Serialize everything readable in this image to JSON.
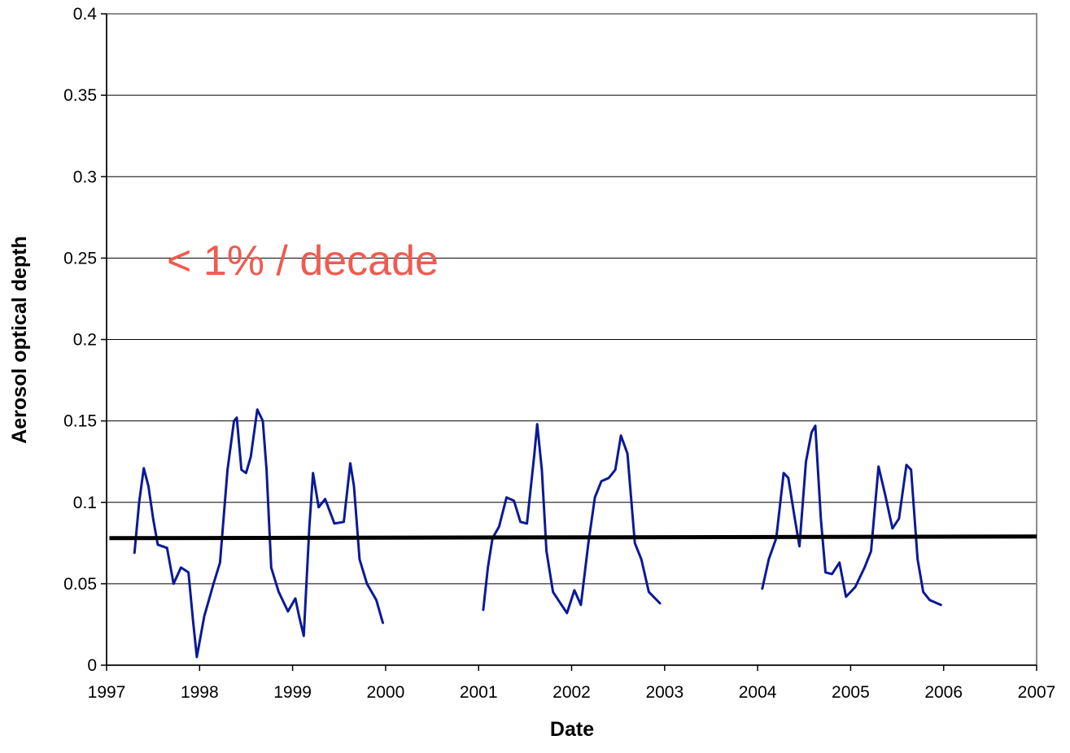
{
  "chart_data": {
    "type": "line",
    "title": "",
    "xlabel": "Date",
    "ylabel": "Aerosol optical depth",
    "xlim": [
      1997,
      2007
    ],
    "ylim": [
      0,
      0.4
    ],
    "x_ticks": [
      1997,
      1998,
      1999,
      2000,
      2001,
      2002,
      2003,
      2004,
      2005,
      2006,
      2007
    ],
    "x_tick_labels": [
      "1997",
      "1998",
      "1999",
      "2000",
      "2001",
      "2002",
      "2003",
      "2004",
      "2005",
      "2006",
      "2007"
    ],
    "y_ticks": [
      0,
      0.05,
      0.1,
      0.15,
      0.2,
      0.25,
      0.3,
      0.35,
      0.4
    ],
    "y_tick_labels": [
      "0",
      "0.05",
      "0.1",
      "0.15",
      "0.2",
      "0.25",
      "0.3",
      "0.35",
      "0.4"
    ],
    "grid": "horizontal",
    "legend": "none",
    "annotation": {
      "text": "< 1% / decade",
      "color": "#f05a50"
    },
    "series": [
      {
        "kind": "observed",
        "color": "#0a1a96",
        "segments": [
          [
            [
              1997.3,
              0.069
            ],
            [
              1997.35,
              0.1
            ],
            [
              1997.4,
              0.121
            ],
            [
              1997.45,
              0.11
            ],
            [
              1997.5,
              0.09
            ],
            [
              1997.55,
              0.074
            ],
            [
              1997.65,
              0.072
            ],
            [
              1997.72,
              0.05
            ],
            [
              1997.8,
              0.06
            ],
            [
              1997.88,
              0.057
            ],
            [
              1997.93,
              0.027
            ],
            [
              1997.97,
              0.005
            ],
            [
              1998.05,
              0.03
            ],
            [
              1998.15,
              0.05
            ],
            [
              1998.22,
              0.063
            ],
            [
              1998.3,
              0.12
            ],
            [
              1998.37,
              0.15
            ],
            [
              1998.4,
              0.152
            ],
            [
              1998.45,
              0.12
            ],
            [
              1998.5,
              0.118
            ],
            [
              1998.55,
              0.128
            ],
            [
              1998.62,
              0.157
            ],
            [
              1998.68,
              0.15
            ],
            [
              1998.72,
              0.12
            ],
            [
              1998.77,
              0.06
            ],
            [
              1998.85,
              0.045
            ],
            [
              1998.95,
              0.033
            ],
            [
              1999.03,
              0.041
            ],
            [
              1999.07,
              0.03
            ],
            [
              1999.12,
              0.018
            ],
            [
              1999.18,
              0.085
            ],
            [
              1999.22,
              0.118
            ],
            [
              1999.28,
              0.097
            ],
            [
              1999.35,
              0.102
            ],
            [
              1999.45,
              0.087
            ],
            [
              1999.55,
              0.088
            ],
            [
              1999.62,
              0.124
            ],
            [
              1999.66,
              0.11
            ],
            [
              1999.72,
              0.065
            ],
            [
              1999.8,
              0.05
            ],
            [
              1999.9,
              0.04
            ],
            [
              1999.97,
              0.026
            ]
          ],
          [
            [
              2001.05,
              0.034
            ],
            [
              2001.1,
              0.06
            ],
            [
              2001.15,
              0.078
            ],
            [
              2001.22,
              0.085
            ],
            [
              2001.3,
              0.103
            ],
            [
              2001.38,
              0.101
            ],
            [
              2001.45,
              0.088
            ],
            [
              2001.52,
              0.087
            ],
            [
              2001.6,
              0.13
            ],
            [
              2001.63,
              0.148
            ],
            [
              2001.68,
              0.12
            ],
            [
              2001.73,
              0.07
            ],
            [
              2001.8,
              0.045
            ],
            [
              2001.88,
              0.038
            ],
            [
              2001.95,
              0.032
            ],
            [
              2002.03,
              0.046
            ],
            [
              2002.1,
              0.037
            ],
            [
              2002.18,
              0.075
            ],
            [
              2002.25,
              0.103
            ],
            [
              2002.32,
              0.113
            ],
            [
              2002.4,
              0.115
            ],
            [
              2002.47,
              0.12
            ],
            [
              2002.53,
              0.141
            ],
            [
              2002.6,
              0.13
            ],
            [
              2002.68,
              0.075
            ],
            [
              2002.75,
              0.065
            ],
            [
              2002.83,
              0.045
            ],
            [
              2002.95,
              0.038
            ]
          ],
          [
            [
              2004.05,
              0.047
            ],
            [
              2004.12,
              0.065
            ],
            [
              2004.2,
              0.078
            ],
            [
              2004.28,
              0.118
            ],
            [
              2004.33,
              0.115
            ],
            [
              2004.4,
              0.09
            ],
            [
              2004.45,
              0.073
            ],
            [
              2004.52,
              0.125
            ],
            [
              2004.58,
              0.143
            ],
            [
              2004.62,
              0.147
            ],
            [
              2004.68,
              0.09
            ],
            [
              2004.73,
              0.057
            ],
            [
              2004.8,
              0.056
            ],
            [
              2004.88,
              0.063
            ],
            [
              2004.95,
              0.042
            ],
            [
              2005.05,
              0.048
            ],
            [
              2005.15,
              0.06
            ],
            [
              2005.22,
              0.07
            ],
            [
              2005.3,
              0.122
            ],
            [
              2005.37,
              0.105
            ],
            [
              2005.45,
              0.084
            ],
            [
              2005.52,
              0.09
            ],
            [
              2005.6,
              0.123
            ],
            [
              2005.65,
              0.12
            ],
            [
              2005.72,
              0.065
            ],
            [
              2005.78,
              0.045
            ],
            [
              2005.85,
              0.04
            ],
            [
              2005.97,
              0.037
            ]
          ]
        ]
      },
      {
        "kind": "trend",
        "color": "#000000",
        "points": [
          [
            1997.03,
            0.078
          ],
          [
            2007.0,
            0.079
          ]
        ]
      }
    ]
  }
}
